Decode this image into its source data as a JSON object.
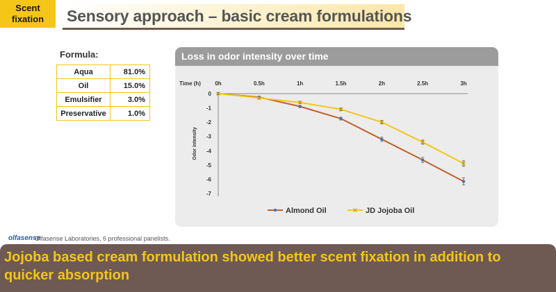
{
  "tag": {
    "line1": "Scent",
    "line2": "fixation"
  },
  "header": {
    "title": "Sensory approach – basic cream formulations"
  },
  "formula": {
    "title": "Formula:",
    "rows": [
      {
        "name": "Aqua",
        "value": "81.0%"
      },
      {
        "name": "Oil",
        "value": "15.0%"
      },
      {
        "name": "Emulsifier",
        "value": "3.0%"
      },
      {
        "name": "Preservative",
        "value": "1.0%"
      }
    ]
  },
  "colors": {
    "accent": "#f5c518",
    "almond": "#c0602a",
    "jojoba": "#f5c518",
    "banner": "#6e5a52",
    "marker": "#4a6fb5"
  },
  "chart_data": {
    "type": "line",
    "title": "Loss in odor intensity over time",
    "x_axis_title": "Time (h)",
    "ylabel": "Odor intensity",
    "categories": [
      "0h",
      "0.5h",
      "1h",
      "1.5h",
      "2h",
      "2.5h",
      "3h"
    ],
    "ylim": [
      -7,
      0
    ],
    "yticks": [
      "0",
      "-1",
      "-2",
      "-3",
      "-4",
      "-5",
      "-6",
      "-7"
    ],
    "grid": false,
    "legend": "bottom",
    "series": [
      {
        "name": "Almond Oil",
        "values": [
          0,
          -0.25,
          -0.9,
          -1.75,
          -3.2,
          -4.65,
          -6.15
        ],
        "error": [
          0,
          0.08,
          0.08,
          0.1,
          0.15,
          0.18,
          0.25
        ]
      },
      {
        "name": "JD Jojoba Oil",
        "values": [
          0,
          -0.3,
          -0.62,
          -1.1,
          -2.0,
          -3.4,
          -4.9
        ],
        "error": [
          0,
          0.08,
          0.08,
          0.1,
          0.12,
          0.15,
          0.2
        ]
      }
    ]
  },
  "footer": {
    "logo": "olfasense",
    "source": "Olfasense Laboratories, 6 professional panelists."
  },
  "banner": {
    "text": "Jojoba based cream formulation showed better scent fixation in addition to quicker absorption"
  }
}
